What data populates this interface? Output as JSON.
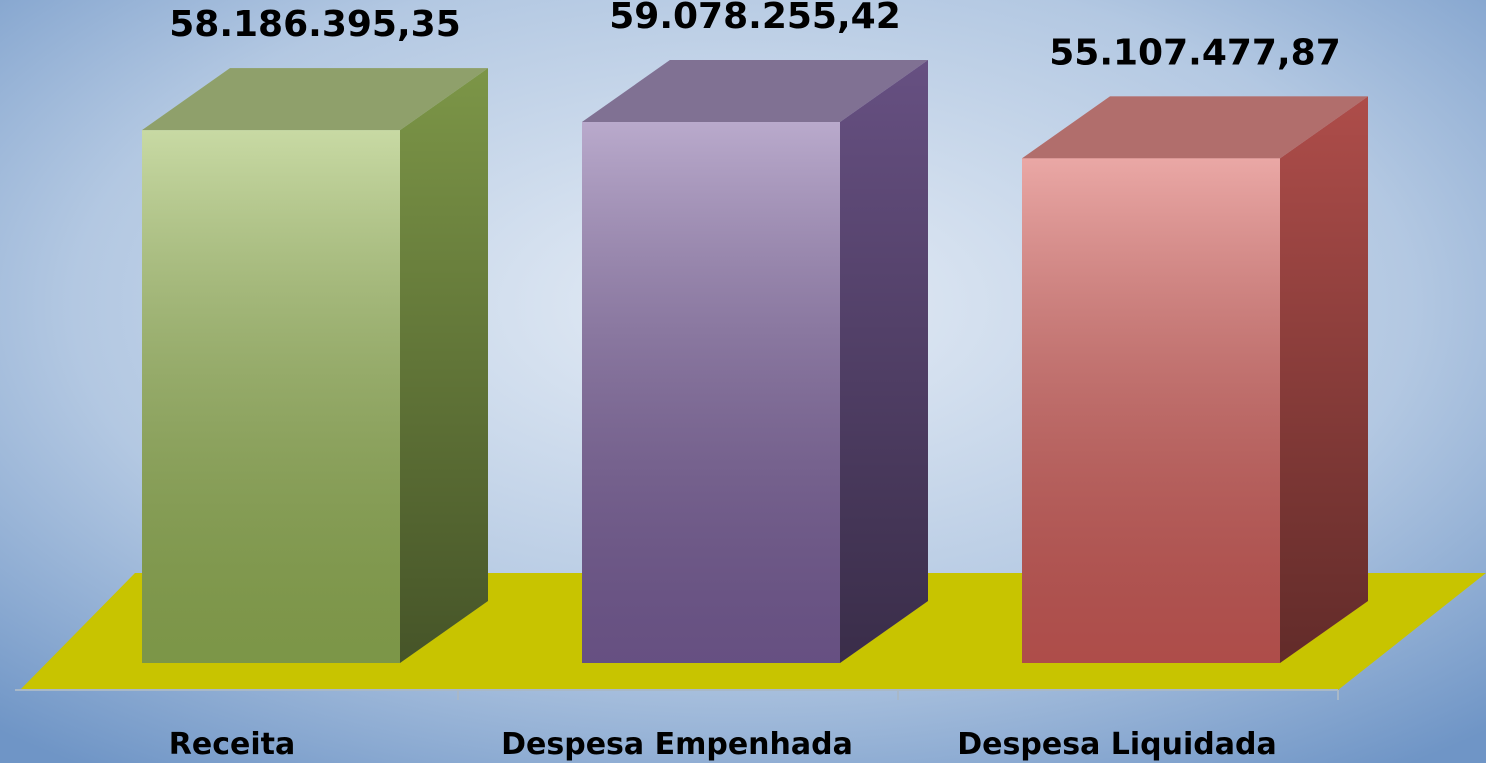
{
  "chart_data": {
    "type": "bar3d",
    "categories": [
      "Receita",
      "Despesa Empenhada",
      "Despesa Liquidada"
    ],
    "values": [
      58186395.35,
      59078255.42,
      55107477.87
    ],
    "value_labels": [
      "58.186.395,35",
      "59.078.255,42",
      "55.107.477,87"
    ],
    "colors": [
      "#9bbb59",
      "#8064a2",
      "#d9605c"
    ],
    "floor_color": "#c8c400"
  }
}
